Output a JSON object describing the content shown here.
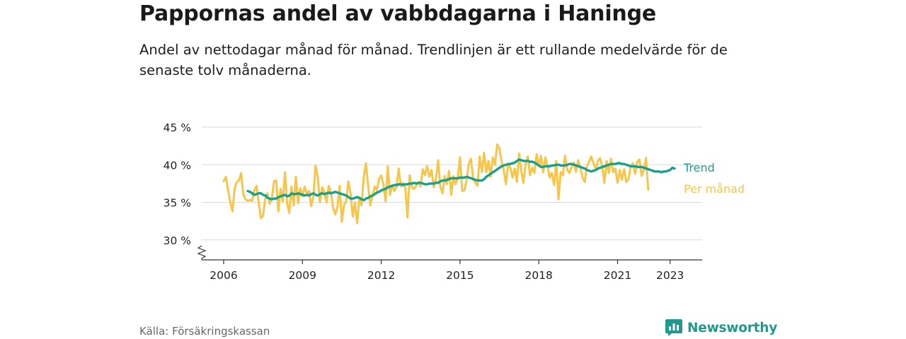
{
  "header": {
    "title": "Pappornas andel av vabbdagarna i Haninge",
    "subtitle": "Andel av nettodagar månad för månad. Trendlinjen är ett rullande medelvärde för de senaste tolv månaderna."
  },
  "footer": {
    "source": "Källa: Försäkringskassan",
    "brand": "Newsworthy"
  },
  "colors": {
    "monthly": "#f7c54a",
    "trend": "#18a08f",
    "grid": "#d9d9d9",
    "axis": "#333333",
    "brand": "#1f9a8f"
  },
  "chart_data": {
    "type": "line",
    "title": "Pappornas andel av vabbdagarna i Haninge",
    "x_ticks": [
      2006,
      2009,
      2012,
      2015,
      2018,
      2021,
      2023
    ],
    "x_tick_labels": [
      "2006",
      "2009",
      "2012",
      "2015",
      "2018",
      "2021",
      "2023"
    ],
    "y_ticks": [
      30,
      35,
      40,
      45
    ],
    "y_tick_labels": [
      "30 %",
      "35 %",
      "40 %",
      "45 %"
    ],
    "xlim": [
      2005.5,
      2024.0
    ],
    "ylim": [
      27.5,
      45
    ],
    "y_axis_break": true,
    "grid": "horizontal",
    "legend": "direct labels at line ends",
    "series": [
      {
        "name": "Per månad",
        "key": "monthly",
        "x_start": 2006.0,
        "x_step": 0.08333,
        "values": [
          37.8,
          38.4,
          36.6,
          35.0,
          33.8,
          36.9,
          37.7,
          37.9,
          38.9,
          36.0,
          35.4,
          35.2,
          35.3,
          35.2,
          36.6,
          37.2,
          35.0,
          32.9,
          33.2,
          35.5,
          36.2,
          34.8,
          35.5,
          37.8,
          37.9,
          33.8,
          36.8,
          35.1,
          39.0,
          34.8,
          33.6,
          37.1,
          34.6,
          38.4,
          34.9,
          36.9,
          35.8,
          37.1,
          36.1,
          36.5,
          34.5,
          35.8,
          39.9,
          38.4,
          35.0,
          37.0,
          36.4,
          35.0,
          37.2,
          36.4,
          34.2,
          33.4,
          34.4,
          37.2,
          32.4,
          34.6,
          35.2,
          37.8,
          36.2,
          33.1,
          35.0,
          32.2,
          35.6,
          34.6,
          38.3,
          40.2,
          37.3,
          34.6,
          35.8,
          37.1,
          36.6,
          38.1,
          38.6,
          37.4,
          35.1,
          39.8,
          36.0,
          37.3,
          36.5,
          37.1,
          39.5,
          37.1,
          37.6,
          36.9,
          33.0,
          38.6,
          37.0,
          36.8,
          37.2,
          37.7,
          37.1,
          39.4,
          38.6,
          39.8,
          38.4,
          39.3,
          37.0,
          38.1,
          40.6,
          37.1,
          36.2,
          38.5,
          37.4,
          39.2,
          36.0,
          38.5,
          37.4,
          38.3,
          41.0,
          36.5,
          36.6,
          38.0,
          40.1,
          40.8,
          38.2,
          37.6,
          37.2,
          41.1,
          39.0,
          41.6,
          39.0,
          40.5,
          38.4,
          41.0,
          40.0,
          42.7,
          42.2,
          40.5,
          39.3,
          37.4,
          40.1,
          39.6,
          38.3,
          39.5,
          37.7,
          41.5,
          39.2,
          37.6,
          40.1,
          41.1,
          38.6,
          39.6,
          38.9,
          41.4,
          39.8,
          41.2,
          39.0,
          41.0,
          39.8,
          38.3,
          38.9,
          37.3,
          40.5,
          35.4,
          39.0,
          38.6,
          41.2,
          39.3,
          38.9,
          39.7,
          40.3,
          39.1,
          40.6,
          39.6,
          38.3,
          37.7,
          39.8,
          40.4,
          41.1,
          40.2,
          39.4,
          40.5,
          40.9,
          39.8,
          37.6,
          40.5,
          38.9,
          40.8,
          39.0,
          39.5,
          37.6,
          39.3,
          38.0,
          39.4,
          37.7,
          38.1,
          39.7,
          40.2,
          38.8,
          40.4,
          40.7,
          38.5,
          39.4,
          40.9,
          36.7
        ]
      },
      {
        "name": "Trend",
        "key": "trend",
        "x_start": 2006.92,
        "x_step": 0.08333,
        "values": [
          36.5,
          36.4,
          36.2,
          36.0,
          36.1,
          36.2,
          36.2,
          36.0,
          35.9,
          35.6,
          35.5,
          35.4,
          35.5,
          35.5,
          35.7,
          35.8,
          35.9,
          36.0,
          35.8,
          35.9,
          36.2,
          36.1,
          36.1,
          36.2,
          36.1,
          36.0,
          35.9,
          36.0,
          35.9,
          36.1,
          36.2,
          36.0,
          35.9,
          36.1,
          36.2,
          36.1,
          36.2,
          36.3,
          36.2,
          36.3,
          36.4,
          36.3,
          36.2,
          36.1,
          36.0,
          35.9,
          35.7,
          35.5,
          35.5,
          35.6,
          35.7,
          35.6,
          35.4,
          35.3,
          35.5,
          35.6,
          35.8,
          35.9,
          36.1,
          36.3,
          36.4,
          36.6,
          36.7,
          36.8,
          37.0,
          37.1,
          37.2,
          37.3,
          37.3,
          37.4,
          37.4,
          37.3,
          37.4,
          37.4,
          37.5,
          37.5,
          37.6,
          37.5,
          37.6,
          37.6,
          37.5,
          37.4,
          37.4,
          37.5,
          37.5,
          37.5,
          37.6,
          37.6,
          37.8,
          37.9,
          37.9,
          38.0,
          38.1,
          38.2,
          38.2,
          38.2,
          38.2,
          38.3,
          38.3,
          38.3,
          38.4,
          38.3,
          38.2,
          38.1,
          38.0,
          37.9,
          37.9,
          37.9,
          38.1,
          38.4,
          38.6,
          38.8,
          39.0,
          39.2,
          39.4,
          39.6,
          39.8,
          39.9,
          40.0,
          40.1,
          40.1,
          40.2,
          40.3,
          40.5,
          40.7,
          40.6,
          40.5,
          40.5,
          40.5,
          40.4,
          40.4,
          40.3,
          40.1,
          39.9,
          39.7,
          39.7,
          39.8,
          39.8,
          39.8,
          39.9,
          39.9,
          40.0,
          40.0,
          39.9,
          39.9,
          39.9,
          40.0,
          40.1,
          40.1,
          40.0,
          39.9,
          39.8,
          39.7,
          39.6,
          39.5,
          39.3,
          39.2,
          39.1,
          39.2,
          39.3,
          39.5,
          39.6,
          39.7,
          39.8,
          39.9,
          40.0,
          40.1,
          40.1,
          40.1,
          40.2,
          40.2,
          40.1,
          40.1,
          40.0,
          39.9,
          39.8,
          39.8,
          39.8,
          39.7,
          39.7,
          39.7,
          39.6,
          39.5,
          39.4,
          39.3,
          39.2,
          39.1,
          39.1,
          39.1,
          39.0,
          39.1,
          39.1,
          39.2,
          39.3,
          39.6,
          39.5
        ]
      }
    ]
  }
}
